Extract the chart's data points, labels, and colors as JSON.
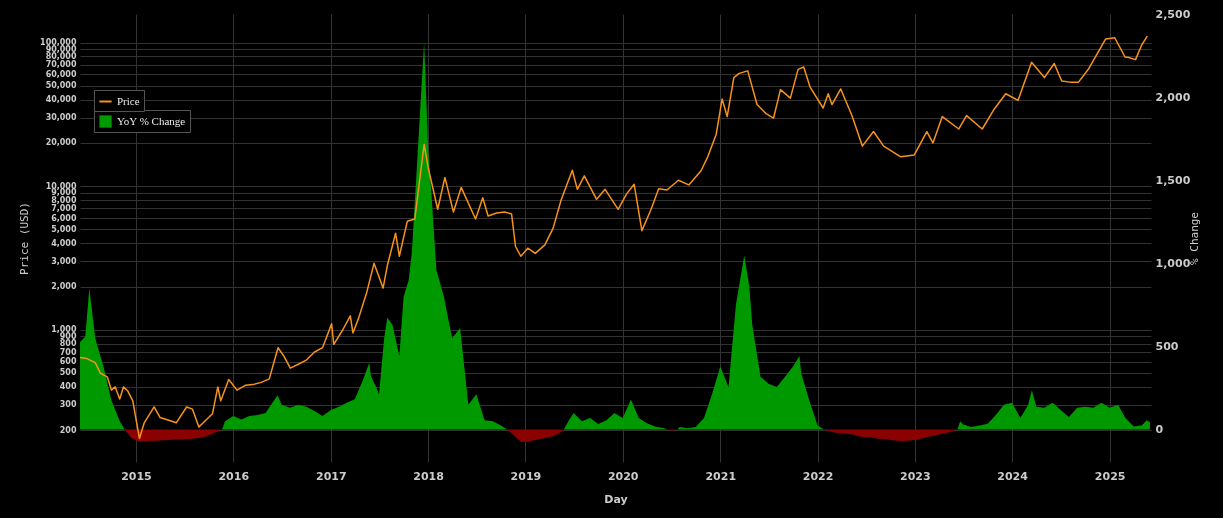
{
  "chart_data": {
    "type": "line",
    "xlabel": "Day",
    "ylabel": "Price (USD)",
    "y2label": "% Change",
    "log": "y",
    "grid": true,
    "legend": "top left",
    "line_style": "solid",
    "xlim": [
      "2014-06-05",
      "2025-06-05"
    ],
    "xticks": [
      "2015",
      "2016",
      "2017",
      "2018",
      "2019",
      "2020",
      "2021",
      "2022",
      "2023",
      "2024",
      "2025"
    ],
    "ylim": [
      120,
      158000
    ],
    "yticks": [
      200,
      300,
      400,
      500,
      600,
      700,
      800,
      900,
      {
        "value": 1000,
        "label": "1,000"
      },
      {
        "value": 2000,
        "label": "2,000"
      },
      {
        "value": 3000,
        "label": "3,000"
      },
      {
        "value": 4000,
        "label": "4,000"
      },
      {
        "value": 5000,
        "label": "5,000"
      },
      {
        "value": 6000,
        "label": "6,000"
      },
      {
        "value": 7000,
        "label": "7,000"
      },
      {
        "value": 8000,
        "label": "8,000"
      },
      {
        "value": 9000,
        "label": "9,000"
      },
      {
        "value": 10000,
        "label": "10,000"
      },
      {
        "value": 20000,
        "label": "20,000"
      },
      {
        "value": 30000,
        "label": "30,000"
      },
      {
        "value": 40000,
        "label": "40,000"
      },
      {
        "value": 50000,
        "label": "50,000"
      },
      {
        "value": 60000,
        "label": "60,000"
      },
      {
        "value": 70000,
        "label": "70,000"
      },
      {
        "value": 80000,
        "label": "80,000"
      },
      {
        "value": 90000,
        "label": "90,000"
      },
      {
        "value": 100000,
        "label": "100,000"
      }
    ],
    "y2lim": [
      -195,
      2500
    ],
    "y2ticks": [
      0,
      500,
      {
        "value": 1000,
        "label": "1,000"
      },
      {
        "value": 1500,
        "label": "1,500"
      },
      {
        "value": 2000,
        "label": "2,000"
      },
      {
        "value": 2500,
        "label": "2,500"
      }
    ],
    "series": [
      {
        "name": "YoY % Change",
        "type": "area",
        "axis": "y2",
        "color": "#009a00",
        "x": [
          "2014-06-05",
          "2014-06-25",
          "2014-07-10",
          "2014-08-01",
          "2014-09-01",
          "2014-10-01",
          "2014-11-01",
          "2014-11-20",
          "2015-06-01",
          "2015-11-20",
          "2015-12-01",
          "2016-01-01",
          "2016-02-01",
          "2016-03-01",
          "2016-04-01",
          "2016-05-01",
          "2016-06-15",
          "2016-07-01",
          "2016-08-01",
          "2016-09-01",
          "2016-10-01",
          "2016-11-01",
          "2016-12-01",
          "2017-01-01",
          "2017-02-01",
          "2017-03-01",
          "2017-04-01",
          "2017-05-01",
          "2017-05-25",
          "2017-06-01",
          "2017-06-20",
          "2017-07-01",
          "2017-07-20",
          "2017-08-01",
          "2017-08-20",
          "2017-09-15",
          "2017-10-01",
          "2017-10-20",
          "2017-11-01",
          "2017-11-20",
          "2017-12-05",
          "2017-12-17",
          "2018-01-01",
          "2018-01-15",
          "2018-02-01",
          "2018-03-01",
          "2018-04-01",
          "2018-05-01",
          "2018-06-01",
          "2018-07-01",
          "2018-08-01",
          "2018-09-01",
          "2018-10-01",
          "2018-10-25",
          "2019-02-01",
          "2019-05-25",
          "2019-06-15",
          "2019-07-01",
          "2019-08-01",
          "2019-09-01",
          "2019-10-01",
          "2019-11-01",
          "2019-12-01",
          "2020-01-01",
          "2020-02-01",
          "2020-03-01",
          "2020-04-01",
          "2020-05-01",
          "2020-06-01",
          "2020-06-20",
          "2020-07-10",
          "2020-07-25",
          "2020-08-01",
          "2020-09-01",
          "2020-10-01",
          "2020-11-01",
          "2020-12-01",
          "2021-01-01",
          "2021-02-01",
          "2021-03-01",
          "2021-04-01",
          "2021-04-20",
          "2021-05-01",
          "2021-06-01",
          "2021-07-01",
          "2021-08-01",
          "2021-09-01",
          "2021-10-01",
          "2021-10-25",
          "2021-11-01",
          "2021-12-01",
          "2022-01-01",
          "2022-01-25",
          "2022-09-01",
          "2023-06-10",
          "2023-06-20",
          "2023-07-01",
          "2023-08-01",
          "2023-09-01",
          "2023-10-01",
          "2023-11-01",
          "2023-12-01",
          "2024-01-01",
          "2024-02-01",
          "2024-03-01",
          "2024-03-15",
          "2024-04-01",
          "2024-05-01",
          "2024-06-01",
          "2024-07-01",
          "2024-08-01",
          "2024-09-01",
          "2024-10-01",
          "2024-11-01",
          "2024-12-01",
          "2025-01-01",
          "2025-02-01",
          "2025-03-01",
          "2025-04-01",
          "2025-05-01",
          "2025-05-20",
          "2025-06-01"
        ],
        "values": [
          525,
          560,
          850,
          549,
          380,
          175,
          50,
          0,
          null,
          0,
          50,
          81,
          60,
          81,
          87,
          100,
          206,
          150,
          131,
          150,
          137,
          112,
          81,
          118,
          137,
          162,
          183,
          297,
          400,
          318,
          256,
          212,
          548,
          673,
          630,
          443,
          798,
          898,
          1066,
          1584,
          2000,
          2330,
          1700,
          1378,
          960,
          800,
          549,
          611,
          150,
          212,
          56,
          50,
          25,
          0,
          null,
          0,
          60,
          100,
          50,
          69,
          33,
          56,
          100,
          69,
          181,
          69,
          38,
          19,
          10,
          0,
          null,
          0,
          15,
          8,
          15,
          69,
          212,
          380,
          256,
          754,
          1047,
          860,
          630,
          318,
          275,
          256,
          318,
          380,
          443,
          337,
          175,
          25,
          0,
          null,
          0,
          50,
          30,
          15,
          25,
          35,
          87,
          150,
          162,
          69,
          150,
          237,
          137,
          131,
          162,
          118,
          75,
          131,
          137,
          131,
          162,
          131,
          150,
          69,
          19,
          25,
          56,
          44
        ]
      },
      {
        "type": "area",
        "axis": "y2",
        "color": "#8b0000",
        "x": [
          "2014-11-20",
          "2014-12-15",
          "2015-01-15",
          "2015-02-15",
          "2015-04-01",
          "2015-06-01",
          "2015-08-01",
          "2015-09-15",
          "2015-10-15",
          "2015-11-20",
          "2016-06-01",
          "2018-10-25",
          "2018-11-15",
          "2018-12-15",
          "2019-01-15",
          "2019-02-15",
          "2019-03-15",
          "2019-04-15",
          "2019-05-10",
          "2019-05-25",
          "2019-12-01",
          "2020-06-20",
          "2020-07-01",
          "2020-07-25",
          "2021-06-01",
          "2022-01-25",
          "2022-02-15",
          "2022-03-15",
          "2022-04-15",
          "2022-05-15",
          "2022-06-15",
          "2022-07-15",
          "2022-08-15",
          "2022-09-15",
          "2022-10-15",
          "2022-11-15",
          "2022-12-15",
          "2023-01-15",
          "2023-02-15",
          "2023-03-15",
          "2023-04-15",
          "2023-05-15",
          "2023-06-10"
        ],
        "values": [
          0,
          -50,
          -75,
          -68,
          -65,
          -60,
          -55,
          -45,
          -25,
          0,
          null,
          0,
          -30,
          -75,
          -70,
          -60,
          -50,
          -40,
          -20,
          0,
          null,
          0,
          -8,
          0,
          null,
          0,
          -10,
          -20,
          -25,
          -30,
          -44,
          -45,
          -55,
          -58,
          -65,
          -68,
          -65,
          -60,
          -45,
          -35,
          -25,
          -15,
          0
        ]
      },
      {
        "name": "Price",
        "type": "line",
        "color": "#f7931a",
        "x": [
          "2014-06-05",
          "2014-07-01",
          "2014-08-01",
          "2014-08-20",
          "2014-09-15",
          "2014-10-01",
          "2014-10-15",
          "2014-11-01",
          "2014-11-15",
          "2014-12-01",
          "2014-12-20",
          "2015-01-14",
          "2015-02-01",
          "2015-03-10",
          "2015-04-01",
          "2015-05-01",
          "2015-06-01",
          "2015-07-10",
          "2015-08-01",
          "2015-08-25",
          "2015-09-15",
          "2015-10-15",
          "2015-11-04",
          "2015-11-15",
          "2015-12-15",
          "2016-01-15",
          "2016-02-15",
          "2016-03-15",
          "2016-04-15",
          "2016-05-15",
          "2016-06-17",
          "2016-07-10",
          "2016-08-02",
          "2016-09-01",
          "2016-10-01",
          "2016-11-01",
          "2016-12-01",
          "2017-01-04",
          "2017-01-12",
          "2017-02-15",
          "2017-03-15",
          "2017-03-25",
          "2017-04-15",
          "2017-05-15",
          "2017-06-12",
          "2017-07-16",
          "2017-08-01",
          "2017-09-01",
          "2017-09-15",
          "2017-10-15",
          "2017-11-12",
          "2017-12-17",
          "2018-01-01",
          "2018-02-06",
          "2018-03-05",
          "2018-04-06",
          "2018-05-05",
          "2018-06-28",
          "2018-07-25",
          "2018-08-14",
          "2018-09-15",
          "2018-10-15",
          "2018-11-10",
          "2018-11-25",
          "2018-12-15",
          "2019-01-10",
          "2019-02-07",
          "2019-03-15",
          "2019-04-15",
          "2019-05-15",
          "2019-06-26",
          "2019-07-15",
          "2019-08-10",
          "2019-09-25",
          "2019-10-27",
          "2019-12-15",
          "2020-01-15",
          "2020-02-13",
          "2020-03-13",
          "2020-04-15",
          "2020-05-15",
          "2020-06-15",
          "2020-07-28",
          "2020-09-05",
          "2020-10-21",
          "2020-11-15",
          "2020-12-17",
          "2021-01-08",
          "2021-01-27",
          "2021-02-21",
          "2021-03-13",
          "2021-04-14",
          "2021-05-19",
          "2021-06-22",
          "2021-07-20",
          "2021-08-15",
          "2021-09-21",
          "2021-10-20",
          "2021-11-10",
          "2021-12-04",
          "2022-01-22",
          "2022-02-10",
          "2022-02-24",
          "2022-03-29",
          "2022-05-10",
          "2022-06-18",
          "2022-07-30",
          "2022-09-06",
          "2022-11-09",
          "2022-12-30",
          "2023-02-15",
          "2023-03-10",
          "2023-04-14",
          "2023-06-15",
          "2023-07-14",
          "2023-09-11",
          "2023-10-24",
          "2023-12-08",
          "2024-01-23",
          "2024-03-14",
          "2024-05-01",
          "2024-06-07",
          "2024-07-05",
          "2024-08-05",
          "2024-09-06",
          "2024-10-15",
          "2024-12-17",
          "2025-01-20",
          "2025-02-28",
          "2025-03-10",
          "2025-04-08",
          "2025-05-01",
          "2025-05-22"
        ],
        "values": [
          640,
          630,
          590,
          500,
          470,
          380,
          400,
          330,
          400,
          375,
          320,
          175,
          225,
          290,
          245,
          235,
          225,
          290,
          280,
          210,
          230,
          260,
          400,
          320,
          450,
          380,
          410,
          415,
          430,
          455,
          750,
          650,
          540,
          575,
          615,
          700,
          750,
          1100,
          790,
          1000,
          1250,
          950,
          1200,
          1800,
          2900,
          1950,
          2800,
          4700,
          3250,
          5700,
          5900,
          19500,
          13500,
          6900,
          11500,
          6600,
          9800,
          5900,
          8300,
          6200,
          6500,
          6600,
          6400,
          3800,
          3250,
          3700,
          3400,
          3900,
          5100,
          8000,
          12900,
          9500,
          11800,
          8100,
          9500,
          6900,
          8800,
          10300,
          4900,
          6800,
          9600,
          9400,
          11000,
          10200,
          12800,
          16000,
          23000,
          40500,
          30500,
          57000,
          61000,
          63500,
          37000,
          32000,
          29800,
          47000,
          41000,
          65000,
          67500,
          49000,
          35000,
          44000,
          37000,
          47500,
          31000,
          19000,
          24000,
          19000,
          16000,
          16500,
          24000,
          20000,
          30500,
          25000,
          31000,
          25000,
          34000,
          44000,
          39500,
          73000,
          57000,
          71500,
          54000,
          53000,
          53000,
          66000,
          106000,
          108000,
          79000,
          79000,
          76000,
          96000,
          111000
        ]
      }
    ]
  }
}
